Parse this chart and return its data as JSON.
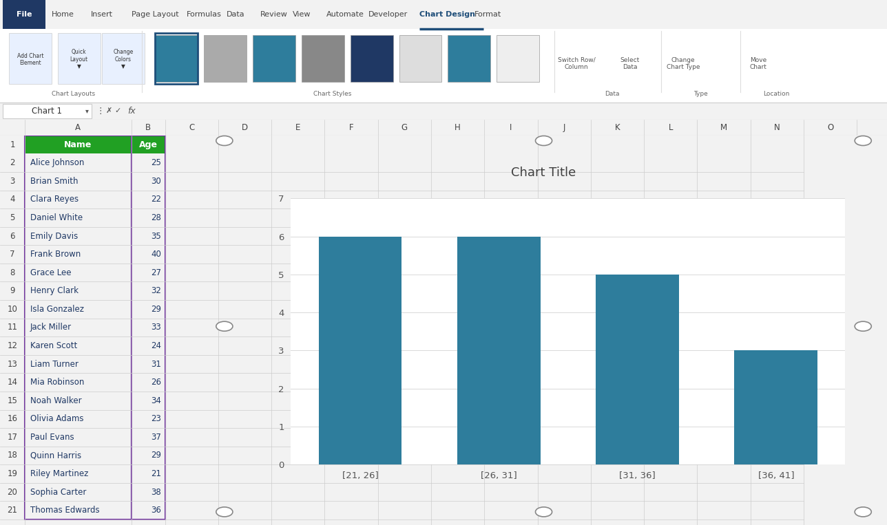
{
  "title": "Chart Title",
  "categories": [
    "[21, 26]",
    "[26, 31]",
    "[31, 36]",
    "[36, 41]"
  ],
  "values": [
    6,
    6,
    5,
    3
  ],
  "bar_color": "#2E7D9C",
  "ylim": [
    0,
    7
  ],
  "yticks": [
    0,
    1,
    2,
    3,
    4,
    5,
    6,
    7
  ],
  "grid_color": "#D9D9D9",
  "bar_width": 0.6,
  "header_green": "#21A023",
  "names": [
    "Alice Johnson",
    "Brian Smith",
    "Clara Reyes",
    "Daniel White",
    "Emily Davis",
    "Frank Brown",
    "Grace Lee",
    "Henry Clark",
    "Isla Gonzalez",
    "Jack Miller",
    "Karen Scott",
    "Liam Turner",
    "Mia Robinson",
    "Noah Walker",
    "Olivia Adams",
    "Paul Evans",
    "Quinn Harris",
    "Riley Martinez",
    "Sophia Carter",
    "Thomas Edwards"
  ],
  "ages": [
    25,
    30,
    22,
    28,
    35,
    40,
    27,
    32,
    29,
    33,
    24,
    31,
    26,
    34,
    23,
    37,
    29,
    21,
    38,
    36
  ],
  "tab_names": [
    "File",
    "Home",
    "Insert",
    "Page Layout",
    "Formulas",
    "Data",
    "Review",
    "View",
    "Automate",
    "Developer",
    "Chart Design",
    "Format"
  ],
  "active_tab": "Chart Design",
  "ribbon_icons": [
    "Add Chart\nElement",
    "Quick\nLayout",
    "Change\nColors"
  ],
  "ribbon_groups": [
    "Chart Layouts",
    "Chart Styles",
    "Data",
    "Type",
    "Location"
  ]
}
